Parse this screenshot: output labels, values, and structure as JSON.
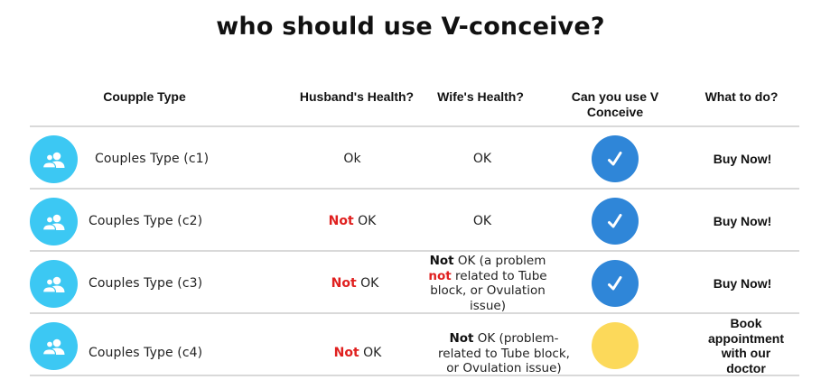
{
  "title": "who should use V-conceive?",
  "headers": {
    "couple_type": "Coupple Type",
    "husband": "Husband's Health?",
    "wife": "Wife's Health?",
    "can_use_line1": "Can you use V",
    "can_use_line2": "Conceive",
    "what_to_do": "What to do?"
  },
  "rows": [
    {
      "couple_type": "Couples Type (c1)",
      "husband": {
        "prefix": "",
        "rest": "Ok"
      },
      "wife": {
        "line1_bold": "",
        "line1_rest": "OK"
      },
      "can_use": "yes",
      "action": "Buy Now!"
    },
    {
      "couple_type": "Couples Type (c2)",
      "husband": {
        "prefix": "Not",
        "rest": " OK"
      },
      "wife": {
        "line1_bold": "",
        "line1_rest": "OK"
      },
      "can_use": "yes",
      "action": "Buy Now!"
    },
    {
      "couple_type": "Couples Type (c3)",
      "husband": {
        "prefix": "Not",
        "rest": " OK"
      },
      "wife": {
        "line1_bold": "Not",
        "line1_rest": " OK (a problem",
        "line2_red": "not",
        "line2_rest": " related to Tube",
        "line3": "block, or Ovulation",
        "line4": "issue)"
      },
      "can_use": "yes",
      "action": "Buy Now!"
    },
    {
      "couple_type": "Couples Type (c4)",
      "husband": {
        "prefix": "Not",
        "rest": " OK"
      },
      "wife": {
        "line1_bold": "Not",
        "line1_rest": " OK (problem-",
        "line2": "related to Tube block,",
        "line3": "or Ovulation issue)"
      },
      "can_use": "maybe",
      "action_lines": [
        "Book",
        "appointment",
        "with our",
        "doctor"
      ]
    }
  ],
  "colors": {
    "avatar": "#3cc8f3",
    "check_circle": "#2f86d8",
    "maybe_circle": "#fcd95a",
    "not_red": "#e0201f"
  },
  "icons": {
    "avatar": "people-icon",
    "check": "checkmark-icon"
  }
}
